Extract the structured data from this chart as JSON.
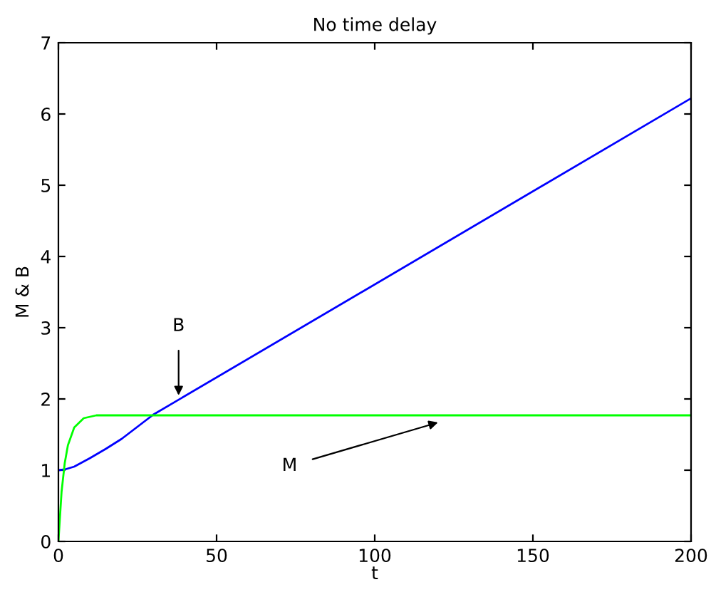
{
  "chart_data": {
    "type": "line",
    "title": "No time delay",
    "xlabel": "t",
    "ylabel": "M & B",
    "xlim": [
      0,
      200
    ],
    "xticks": [
      0,
      50,
      100,
      150,
      200
    ],
    "ylim": [
      0,
      7
    ],
    "yticks": [
      0,
      1,
      2,
      3,
      4,
      5,
      6,
      7
    ],
    "grid": false,
    "legend": false,
    "series": [
      {
        "color": "#0000ff",
        "x": [
          0,
          2,
          5,
          10,
          15,
          20,
          25,
          30,
          200
        ],
        "values": [
          1.0,
          1.01,
          1.05,
          1.17,
          1.3,
          1.44,
          1.61,
          1.78,
          6.22
        ]
      },
      {
        "color": "#00ff00",
        "x": [
          0,
          1,
          2,
          3,
          5,
          8,
          12,
          200
        ],
        "values": [
          0,
          0.7,
          1.1,
          1.35,
          1.6,
          1.73,
          1.77,
          1.77
        ]
      }
    ],
    "annotations": [
      {
        "text": "B",
        "x": 38,
        "y": 2.05
      },
      {
        "text": "M",
        "x": 120,
        "y": 1.67
      }
    ]
  }
}
